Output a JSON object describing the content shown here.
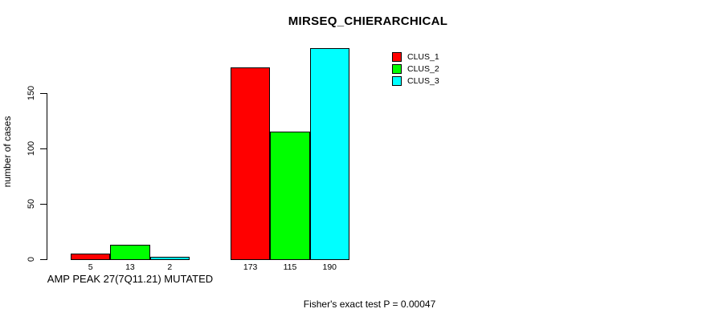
{
  "chart_data": {
    "type": "bar",
    "title": "MIRSEQ_CHIERARCHICAL",
    "ylabel": "number of cases",
    "xlabel": "AMP PEAK 27(7Q11.21) MUTATED",
    "footer": "Fisher's exact test P = 0.00047",
    "ylim": [
      0,
      150
    ],
    "yticks": [
      0,
      50,
      100,
      150
    ],
    "grid": false,
    "legend_position": "top-right",
    "categories": [
      "AMP PEAK 27(7Q11.21) MUTATED",
      ""
    ],
    "series": [
      {
        "name": "CLUS_1",
        "color": "#FF0000",
        "values": [
          5,
          173
        ]
      },
      {
        "name": "CLUS_2",
        "color": "#00FF00",
        "values": [
          13,
          115
        ]
      },
      {
        "name": "CLUS_3",
        "color": "#00FFFF",
        "values": [
          2,
          190
        ]
      }
    ],
    "bar_value_labels": [
      [
        "5",
        "13",
        "2"
      ],
      [
        "173",
        "115",
        "190"
      ]
    ]
  }
}
